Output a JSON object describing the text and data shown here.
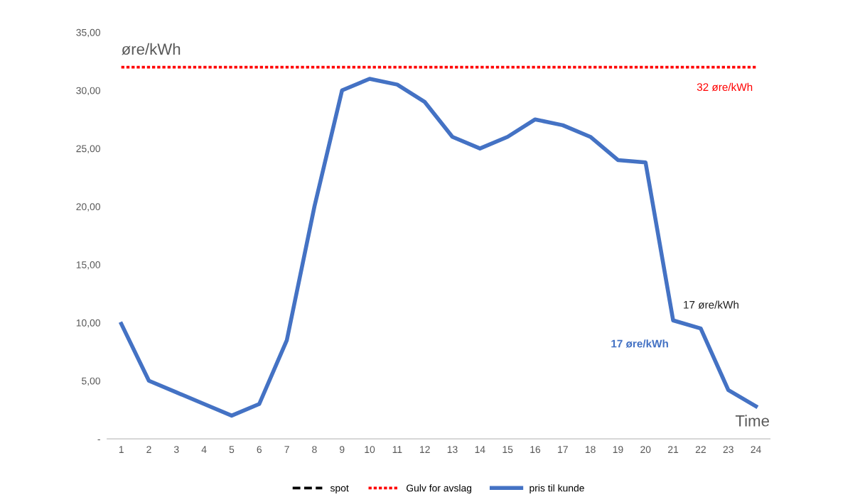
{
  "chart_data": {
    "type": "line",
    "ylabel": "øre/kWh",
    "xlabel": "Time",
    "categories": [
      "1",
      "2",
      "3",
      "4",
      "5",
      "6",
      "7",
      "8",
      "9",
      "10",
      "11",
      "12",
      "13",
      "14",
      "15",
      "16",
      "17",
      "18",
      "19",
      "20",
      "21",
      "22",
      "23",
      "24"
    ],
    "series": [
      {
        "name": "spot",
        "color": "#000000",
        "line_style": "dashed",
        "values": [
          null,
          null,
          null,
          null,
          null,
          null,
          null,
          null,
          null,
          null,
          null,
          null,
          null,
          null,
          null,
          null,
          null,
          null,
          null,
          null,
          null,
          null,
          null,
          null
        ]
      },
      {
        "name": "Gulv for avslag",
        "color": "#ff0000",
        "line_style": "dotted",
        "values": [
          32,
          32,
          32,
          32,
          32,
          32,
          32,
          32,
          32,
          32,
          32,
          32,
          32,
          32,
          32,
          32,
          32,
          32,
          32,
          32,
          32,
          32,
          32,
          32
        ]
      },
      {
        "name": "pris til kunde",
        "color": "#4472c4",
        "line_style": "solid",
        "values": [
          9.9,
          5,
          4,
          3,
          2,
          3,
          8.5,
          20,
          30,
          31,
          30.5,
          29,
          26,
          25,
          26,
          27.5,
          27,
          26,
          24,
          23.8,
          10.2,
          9.5,
          4.2,
          2.8
        ]
      }
    ],
    "ylim": [
      0,
      35
    ],
    "yticks": [
      {
        "value": 0,
        "label": "-"
      },
      {
        "value": 5,
        "label": "5,00"
      },
      {
        "value": 10,
        "label": "10,00"
      },
      {
        "value": 15,
        "label": "15,00"
      },
      {
        "value": 20,
        "label": "20,00"
      },
      {
        "value": 25,
        "label": "25,00"
      },
      {
        "value": 30,
        "label": "30,00"
      },
      {
        "value": 35,
        "label": "35,00"
      }
    ],
    "grid": false,
    "legend": "bottom",
    "annotations": [
      {
        "text": "32 øre/kWh",
        "x": "24",
        "y": 32
      },
      {
        "text": "17 øre/kWh",
        "x": "21",
        "y": 10.2
      },
      "17 øre/kWh"
    ]
  }
}
